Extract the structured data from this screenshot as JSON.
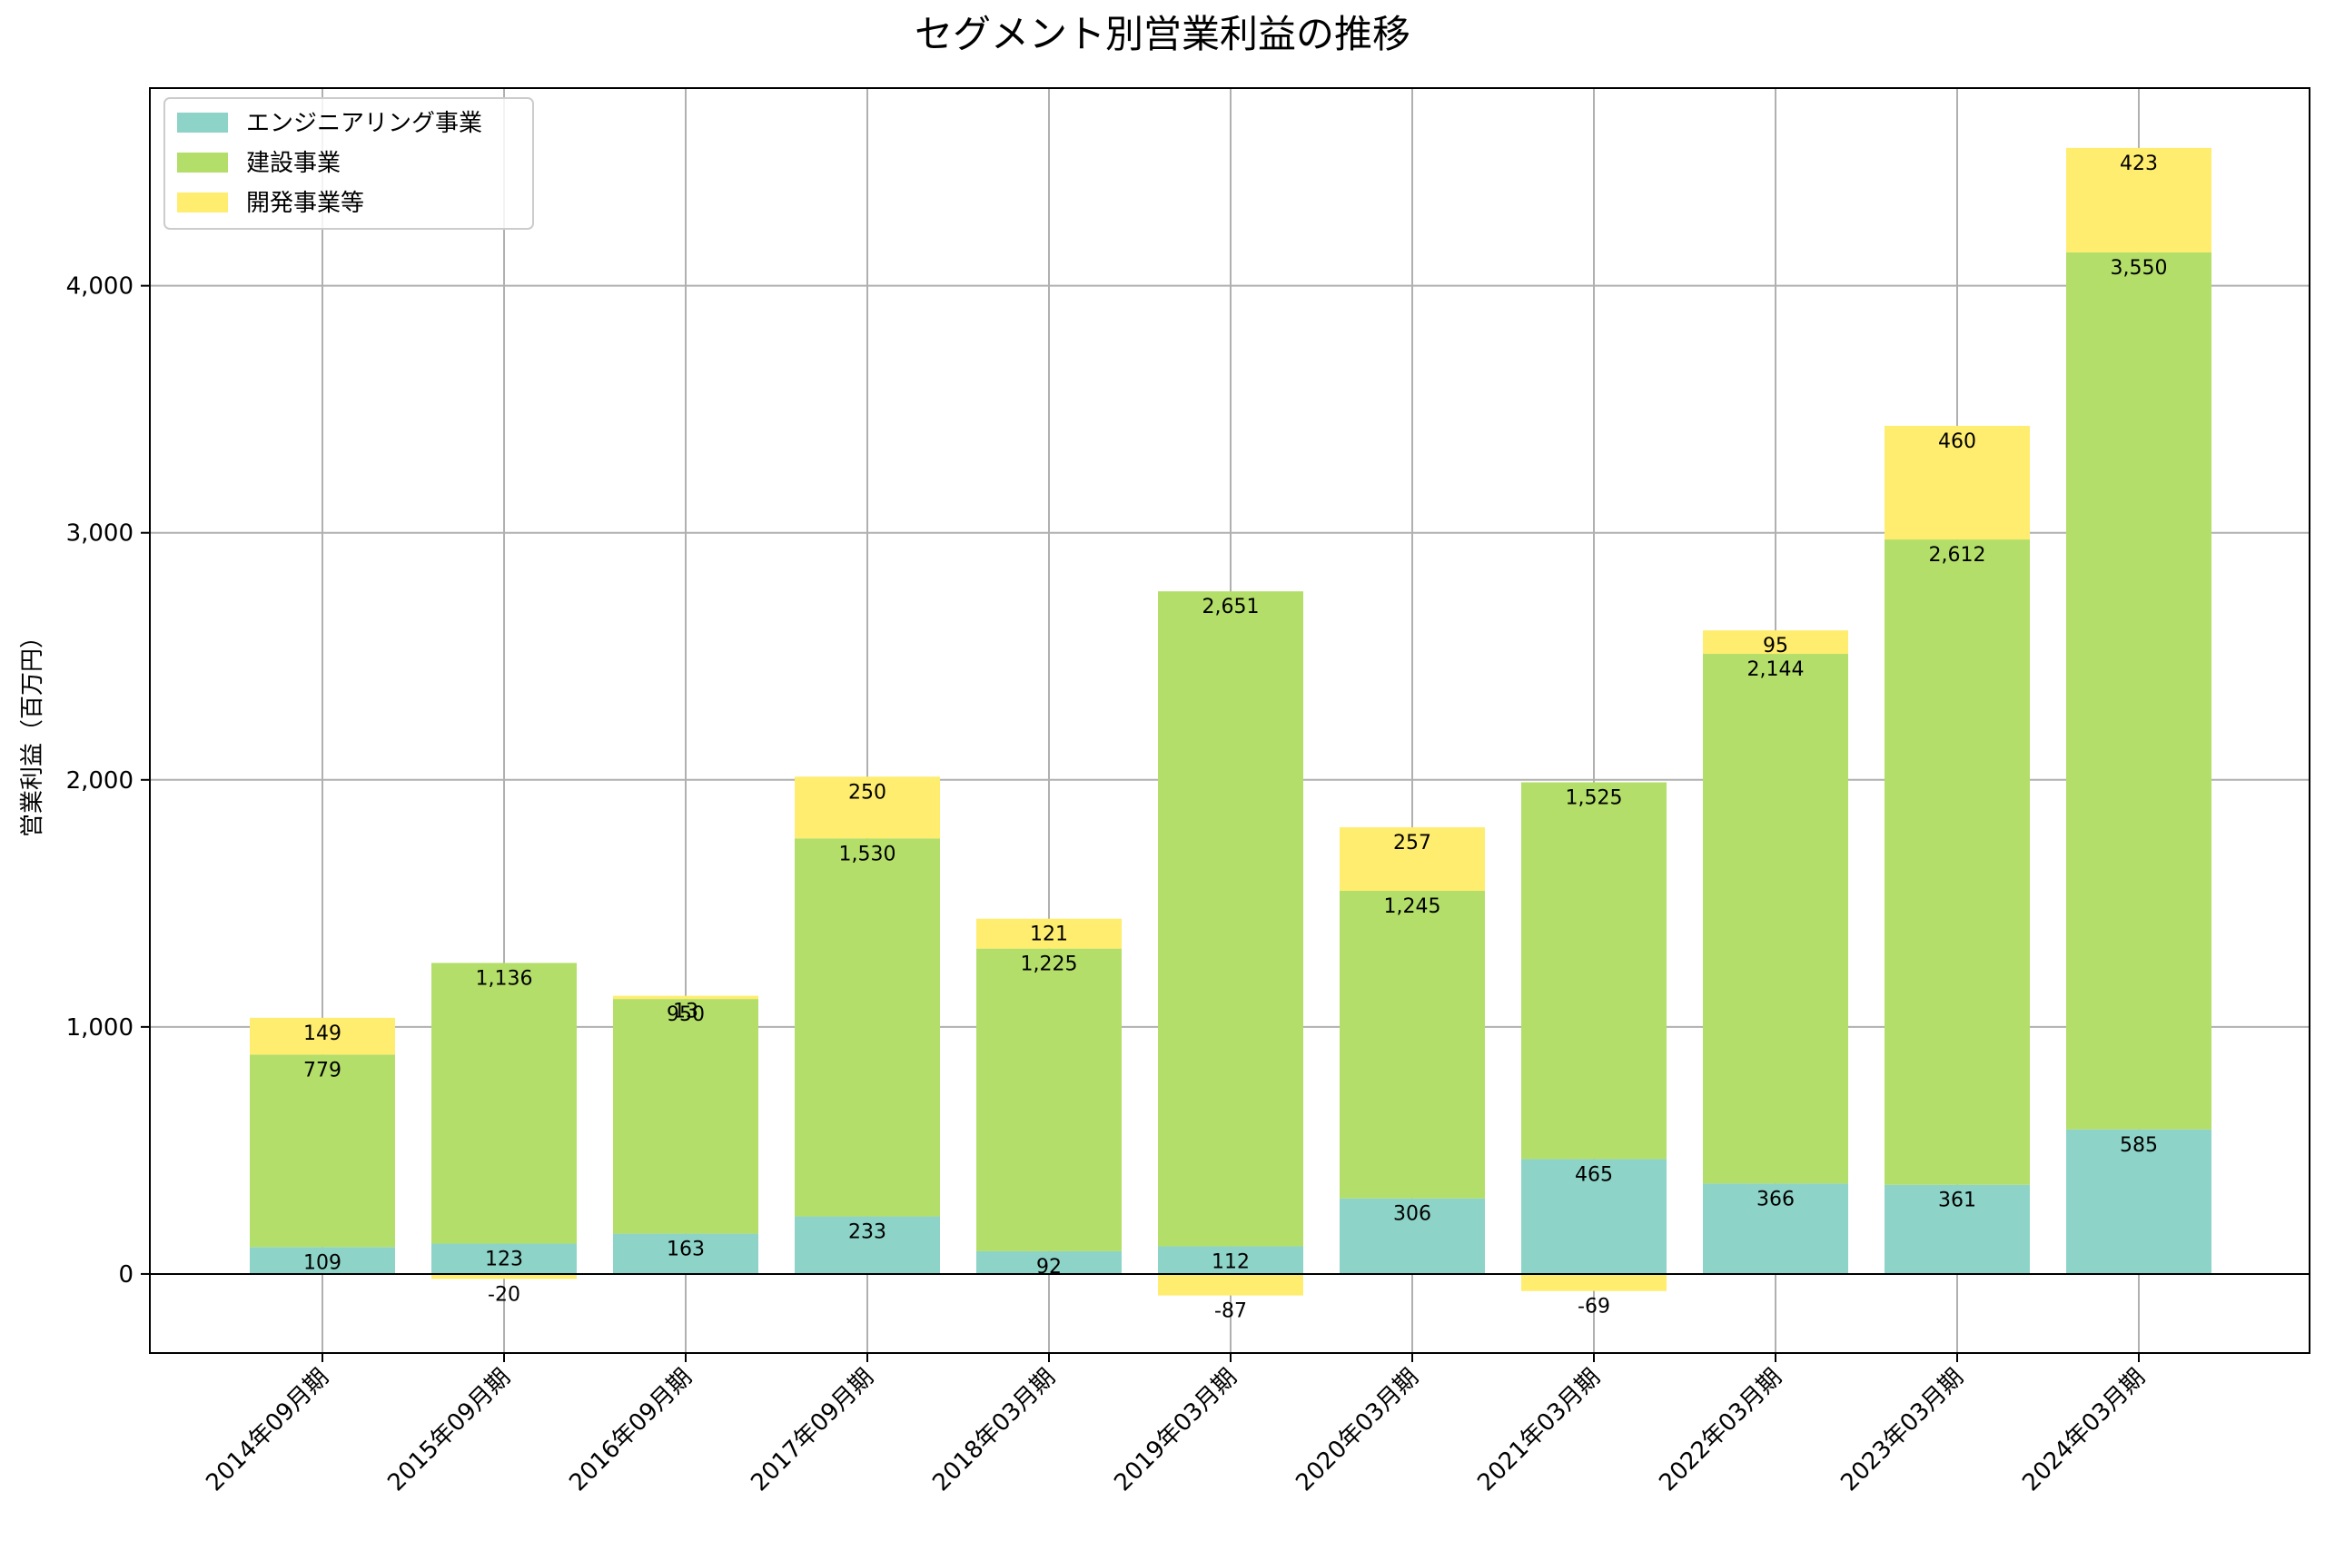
{
  "chart_data": {
    "type": "bar",
    "stacked": true,
    "title": "セグメント別営業利益の推移",
    "xlabel": "",
    "ylabel": "営業利益（百万円）",
    "ylim": [
      -320,
      4800
    ],
    "yticks": [
      0,
      1000,
      2000,
      3000,
      4000
    ],
    "ytick_labels": [
      "0",
      "1,000",
      "2,000",
      "3,000",
      "4,000"
    ],
    "grid": true,
    "legend_position": "top-left",
    "categories": [
      "2014年09月期",
      "2015年09月期",
      "2016年09月期",
      "2017年09月期",
      "2018年03月期",
      "2019年03月期",
      "2020年03月期",
      "2021年03月期",
      "2022年03月期",
      "2023年03月期",
      "2024年03月期"
    ],
    "series": [
      {
        "name": "エンジニアリング事業",
        "color": "#8dd3c7",
        "values": [
          109,
          123,
          163,
          233,
          92,
          112,
          306,
          465,
          366,
          361,
          585
        ],
        "labels": [
          "109",
          "123",
          "163",
          "233",
          "92",
          "112",
          "306",
          "465",
          "366",
          "361",
          "585"
        ]
      },
      {
        "name": "建設事業",
        "color": "#b3de69",
        "values": [
          779,
          1136,
          950,
          1530,
          1225,
          2651,
          1245,
          1525,
          2144,
          2612,
          3550
        ],
        "labels": [
          "779",
          "1,136",
          "950",
          "1,530",
          "1,225",
          "2,651",
          "1,245",
          "1,525",
          "2,144",
          "2,612",
          "3,550"
        ]
      },
      {
        "name": "開発事業等",
        "color": "#ffed6f",
        "values": [
          149,
          -20,
          13,
          250,
          121,
          -87,
          257,
          -69,
          95,
          460,
          423
        ],
        "labels": [
          "149",
          "-20",
          "13",
          "250",
          "121",
          "-87",
          "257",
          "-69",
          "95",
          "460",
          "423"
        ]
      }
    ]
  }
}
